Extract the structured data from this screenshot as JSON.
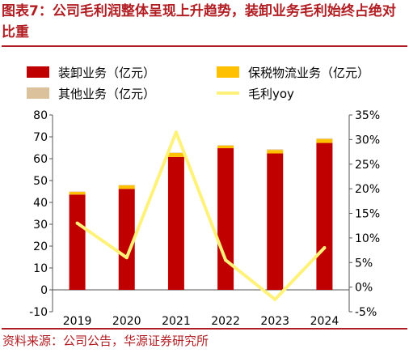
{
  "title": "图表7：公司毛利润整体呈现上升趋势，装卸业务毛利始终占绝对比重",
  "source": "资料来源：公司公告，华源证券研究所",
  "colors": {
    "handling": "#c00000",
    "bonded": "#ffc000",
    "other": "#dcc29c",
    "margin": "#fff27a",
    "brand": "#b01e23"
  },
  "chart_data": {
    "type": "bar",
    "stacked": true,
    "categories": [
      "2019",
      "2020",
      "2021",
      "2022",
      "2023",
      "2024"
    ],
    "series": [
      {
        "name": "装卸业务（亿元）",
        "axis": "left",
        "values": [
          43.6,
          46.2,
          60.8,
          64.8,
          62.4,
          67.2
        ]
      },
      {
        "name": "保税物流业务（亿元）",
        "axis": "left",
        "values": [
          1.2,
          1.6,
          1.8,
          1.2,
          1.6,
          1.8
        ]
      },
      {
        "name": "其他业务（亿元）",
        "axis": "left",
        "values": [
          0.2,
          0.2,
          0.2,
          0.2,
          0.3,
          0.3
        ]
      },
      {
        "name": "毛利yoy",
        "type": "line",
        "axis": "right",
        "values": [
          13.0,
          6.0,
          31.5,
          5.5,
          -2.5,
          8.0
        ]
      }
    ],
    "yleft": {
      "min": -10,
      "max": 80,
      "ticks": [
        "-10",
        "0",
        "10",
        "20",
        "30",
        "40",
        "50",
        "60",
        "70",
        "80"
      ]
    },
    "yright": {
      "min": -5,
      "max": 35,
      "ticks": [
        "-5%",
        "0%",
        "5%",
        "10%",
        "15%",
        "20%",
        "25%",
        "30%",
        "35%"
      ]
    },
    "grid": false,
    "legend_position": "top"
  }
}
